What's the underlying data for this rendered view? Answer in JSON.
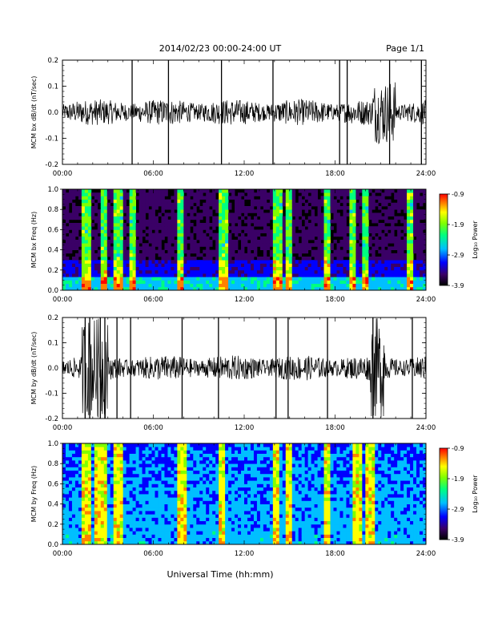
{
  "header": {
    "title": "2014/02/23  00:00-24:00 UT",
    "page": "Page 1/1"
  },
  "footer": {
    "xlabel": "Universal Time (hh:mm)"
  },
  "time_ticks": [
    "00:00",
    "06:00",
    "12:00",
    "18:00",
    "24:00"
  ],
  "colorbar": {
    "label": "Log₁₀ Power",
    "ticks": [
      "-0.9",
      "-1.9",
      "-2.9",
      "-3.9"
    ]
  },
  "colors": {
    "trace": "#000000",
    "spectrogram_bg": "#000000",
    "colormap": [
      "#000000",
      "#3a0066",
      "#0000ff",
      "#00bfff",
      "#00ff80",
      "#80ff00",
      "#ffff00",
      "#ff8000",
      "#ff0000"
    ]
  },
  "chart_data": [
    {
      "type": "line",
      "ylabel": "MCM bx dB/dt (nT/sec)",
      "xlim": [
        0,
        24
      ],
      "ylim": [
        -0.2,
        0.2
      ],
      "yticks": [
        "0.2",
        "0.1",
        "0.0",
        "-0.1",
        "-0.2"
      ],
      "x_ticks": [
        "00:00",
        "06:00",
        "12:00",
        "18:00",
        "24:00"
      ],
      "series": [
        {
          "x": [
            0,
            24
          ],
          "values": [
            0.0,
            0.0
          ]
        }
      ],
      "spikes_hours": [
        4.6,
        7.0,
        10.5,
        13.9,
        18.3,
        18.8,
        21.6,
        23.7
      ]
    },
    {
      "type": "heatmap",
      "ylabel": "MCM bx Freq (Hz)",
      "xlim": [
        0,
        24
      ],
      "ylim": [
        0.0,
        1.0
      ],
      "yticks": [
        "1.0",
        "0.8",
        "0.6",
        "0.4",
        "0.2",
        "0.0"
      ],
      "x_ticks": [
        "00:00",
        "06:00",
        "12:00",
        "18:00",
        "24:00"
      ],
      "color_range": [
        -3.9,
        -0.9
      ],
      "bright_bands_hours": [
        1.6,
        2.8,
        3.7,
        4.6,
        7.8,
        10.5,
        10.8,
        14.2,
        15.0,
        17.5,
        19.2,
        20.0,
        23.0
      ]
    },
    {
      "type": "line",
      "ylabel": "MCM by dB/dt (nT/sec)",
      "xlim": [
        0,
        24
      ],
      "ylim": [
        -0.2,
        0.2
      ],
      "yticks": [
        "0.2",
        "0.1",
        "0.0",
        "-0.1",
        "-0.2"
      ],
      "x_ticks": [
        "00:00",
        "06:00",
        "12:00",
        "18:00",
        "24:00"
      ],
      "series": [
        {
          "x": [
            0,
            24
          ],
          "values": [
            0.0,
            0.0
          ]
        }
      ],
      "spikes_hours": [
        1.5,
        1.8,
        2.5,
        2.8,
        3.6,
        4.5,
        7.9,
        10.3,
        14.1,
        14.9,
        17.5,
        20.5,
        23.1
      ]
    },
    {
      "type": "heatmap",
      "ylabel": "MCM by Freq (Hz)",
      "xlim": [
        0,
        24
      ],
      "ylim": [
        0.0,
        1.0
      ],
      "yticks": [
        "1.0",
        "0.8",
        "0.6",
        "0.4",
        "0.2",
        "0.0"
      ],
      "x_ticks": [
        "00:00",
        "06:00",
        "12:00",
        "18:00",
        "24:00"
      ],
      "color_range": [
        -3.9,
        -0.9
      ],
      "bright_bands_hours": [
        1.6,
        2.3,
        2.8,
        3.7,
        7.9,
        10.5,
        14.1,
        15.0,
        17.5,
        19.5,
        20.3
      ]
    }
  ]
}
